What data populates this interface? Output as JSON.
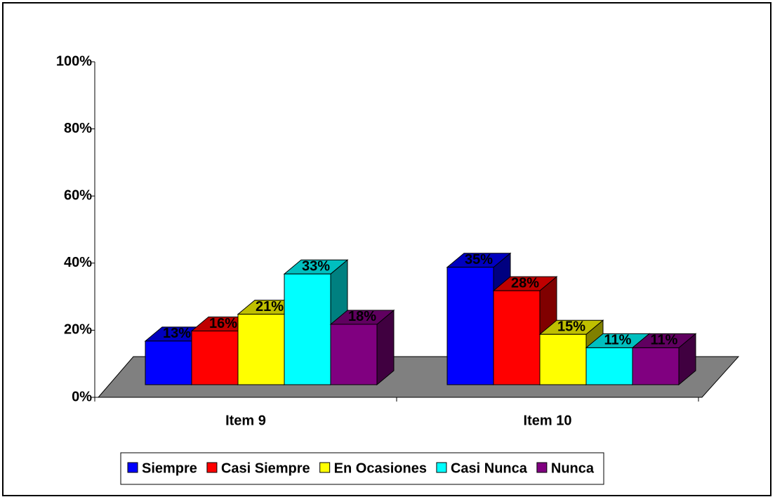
{
  "chart_data": {
    "type": "bar3d",
    "categories": [
      "Item 9",
      "Item 10"
    ],
    "series": [
      {
        "name": "Siempre",
        "color": "#0000ff",
        "values": [
          13,
          35
        ],
        "value_labels": [
          "13%",
          "35%"
        ]
      },
      {
        "name": "Casi Siempre",
        "color": "#ff0000",
        "values": [
          16,
          28
        ],
        "value_labels": [
          "16%",
          "28%"
        ]
      },
      {
        "name": "En Ocasiones",
        "color": "#ffff00",
        "values": [
          21,
          15
        ],
        "value_labels": [
          "21%",
          "15%"
        ]
      },
      {
        "name": "Casi Nunca",
        "color": "#00ffff",
        "values": [
          33,
          11
        ],
        "value_labels": [
          "33%",
          "11%"
        ]
      },
      {
        "name": "Nunca",
        "color": "#800080",
        "values": [
          18,
          11
        ],
        "value_labels": [
          "18%",
          "11%"
        ]
      }
    ],
    "ylim": [
      0,
      100
    ],
    "yticks": [
      {
        "value": 0,
        "label": "0%"
      },
      {
        "value": 20,
        "label": "20%"
      },
      {
        "value": 40,
        "label": "40%"
      },
      {
        "value": 60,
        "label": "60%"
      },
      {
        "value": 80,
        "label": "80%"
      },
      {
        "value": 100,
        "label": "100%"
      }
    ],
    "legend": "bottom"
  }
}
